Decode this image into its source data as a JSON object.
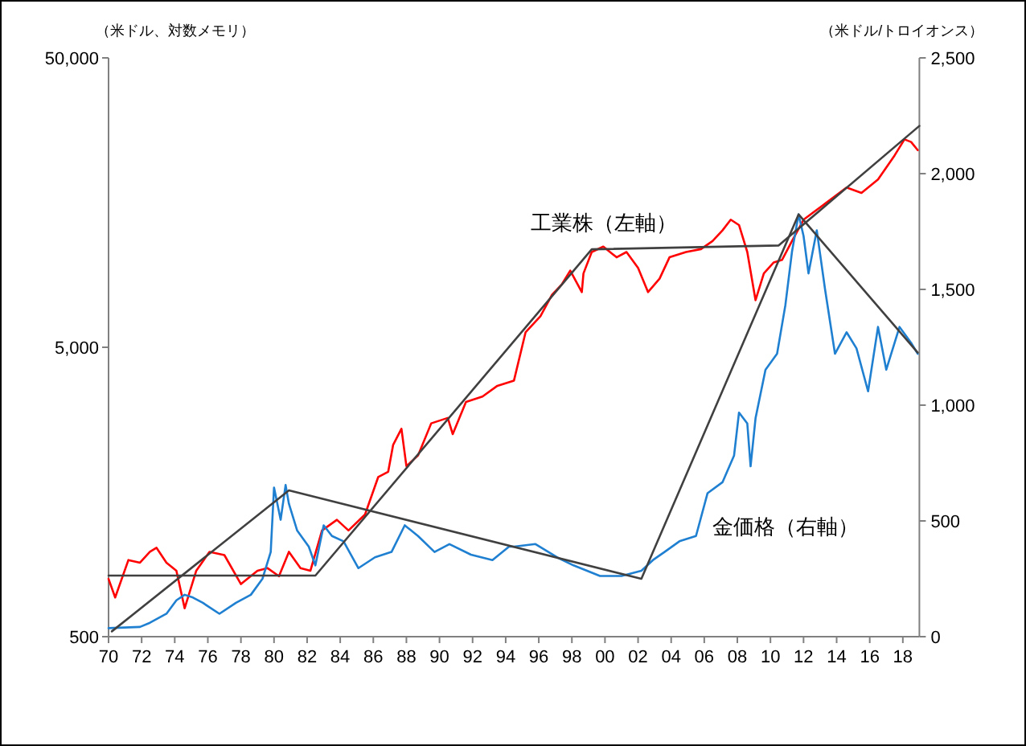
{
  "chart_data": {
    "type": "line",
    "ylabel": "（米ドル、対数メモリ）",
    "y2label": "（米ドル/トロイオンス）",
    "xlim": [
      1970,
      2019
    ],
    "xticks": [
      {
        "value": 1970,
        "label": "70"
      },
      {
        "value": 1972,
        "label": "72"
      },
      {
        "value": 1974,
        "label": "74"
      },
      {
        "value": 1976,
        "label": "76"
      },
      {
        "value": 1978,
        "label": "78"
      },
      {
        "value": 1980,
        "label": "80"
      },
      {
        "value": 1982,
        "label": "82"
      },
      {
        "value": 1984,
        "label": "84"
      },
      {
        "value": 1986,
        "label": "86"
      },
      {
        "value": 1988,
        "label": "88"
      },
      {
        "value": 1990,
        "label": "90"
      },
      {
        "value": 1992,
        "label": "92"
      },
      {
        "value": 1994,
        "label": "94"
      },
      {
        "value": 1996,
        "label": "96"
      },
      {
        "value": 1998,
        "label": "98"
      },
      {
        "value": 2000,
        "label": "00"
      },
      {
        "value": 2002,
        "label": "02"
      },
      {
        "value": 2004,
        "label": "04"
      },
      {
        "value": 2006,
        "label": "06"
      },
      {
        "value": 2008,
        "label": "08"
      },
      {
        "value": 2010,
        "label": "10"
      },
      {
        "value": 2012,
        "label": "12"
      },
      {
        "value": 2014,
        "label": "14"
      },
      {
        "value": 2016,
        "label": "16"
      },
      {
        "value": 2018,
        "label": "18"
      }
    ],
    "ylim": [
      500,
      50000
    ],
    "yticks": [
      500,
      {
        "value": 5000,
        "label": "5,000"
      },
      {
        "value": 50000,
        "label": "50,000"
      }
    ],
    "log": "y",
    "y2lim": [
      0,
      2500
    ],
    "y2ticks": [
      0,
      500,
      {
        "value": 1000,
        "label": "1,000"
      },
      {
        "value": 1500,
        "label": "1,500"
      },
      {
        "value": 2000,
        "label": "2,000"
      },
      {
        "value": 2500,
        "label": "2,500"
      }
    ],
    "series": [
      {
        "name": "工業株（左軸）",
        "color": "#ff0000",
        "x": [
          1970.0,
          1970.4,
          1971.2,
          1971.9,
          1972.5,
          1972.9,
          1973.5,
          1974.1,
          1974.6,
          1975.3,
          1976.1,
          1977.0,
          1978.0,
          1979.0,
          1979.6,
          1980.3,
          1980.9,
          1981.6,
          1982.2,
          1982.9,
          1983.8,
          1984.5,
          1985.5,
          1986.3,
          1986.9,
          1987.2,
          1987.7,
          1988.0,
          1988.7,
          1989.5,
          1990.5,
          1990.8,
          1991.6,
          1992.6,
          1993.5,
          1994.5,
          1995.2,
          1996.1,
          1996.8,
          1997.4,
          1997.9,
          1998.6,
          1998.7,
          1999.2,
          1999.9,
          2000.7,
          2001.3,
          2002.0,
          2002.6,
          2003.3,
          2003.9,
          2004.9,
          2005.8,
          2006.5,
          2007.1,
          2007.6,
          2008.1,
          2008.6,
          2009.1,
          2009.6,
          2010.2,
          2010.7,
          2011.3,
          2012.0,
          2013.3,
          2014.6,
          2015.5,
          2016.5,
          2017.5,
          2018.1,
          2018.5,
          2018.9
        ],
        "values": [
          792,
          683,
          920,
          901,
          982,
          1014,
          901,
          845,
          627,
          845,
          982,
          957,
          760,
          845,
          863,
          809,
          982,
          863,
          845,
          1164,
          1267,
          1164,
          1322,
          1782,
          1858,
          2301,
          2614,
          1941,
          2113,
          2730,
          2850,
          2506,
          3236,
          3380,
          3680,
          3837,
          5630,
          6400,
          7600,
          8260,
          9200,
          7760,
          9000,
          10670,
          11140,
          10230,
          10670,
          9400,
          7760,
          8630,
          10230,
          10670,
          10920,
          11640,
          12670,
          13800,
          13220,
          10670,
          7270,
          9000,
          9820,
          10020,
          11640,
          13800,
          15670,
          17820,
          17070,
          19000,
          23000,
          26150,
          25600,
          24000
        ]
      },
      {
        "name": "金価格（右軸）",
        "axis": "y2",
        "color": "#1f7fd0",
        "x": [
          1970.0,
          1971.9,
          1972.5,
          1973.5,
          1974.1,
          1974.6,
          1975.1,
          1975.7,
          1976.7,
          1977.7,
          1978.6,
          1979.3,
          1979.8,
          1980.0,
          1980.4,
          1980.7,
          1980.9,
          1981.4,
          1982.1,
          1982.5,
          1983.0,
          1983.5,
          1984.2,
          1985.1,
          1986.1,
          1987.1,
          1987.9,
          1988.7,
          1989.7,
          1990.6,
          1991.9,
          1993.2,
          1994.2,
          1994.5,
          1995.8,
          1997.1,
          1998.1,
          1999.7,
          2001.0,
          2002.2,
          2002.9,
          2003.6,
          2004.5,
          2005.5,
          2006.2,
          2007.1,
          2007.8,
          2008.1,
          2008.6,
          2008.8,
          2009.1,
          2009.7,
          2010.4,
          2010.9,
          2011.3,
          2011.7,
          2012.0,
          2012.3,
          2012.8,
          2013.3,
          2013.9,
          2014.6,
          2015.2,
          2015.9,
          2016.5,
          2017.0,
          2017.8,
          2018.5,
          2018.9
        ],
        "values": [
          37,
          42,
          60,
          99,
          157,
          181,
          169,
          146,
          99,
          146,
          181,
          250,
          366,
          644,
          505,
          655,
          574,
          458,
          389,
          308,
          481,
          435,
          412,
          296,
          343,
          366,
          481,
          435,
          366,
          400,
          354,
          331,
          389,
          389,
          400,
          343,
          308,
          262,
          262,
          285,
          331,
          366,
          412,
          435,
          620,
          667,
          782,
          968,
          921,
          736,
          944,
          1153,
          1222,
          1431,
          1662,
          1824,
          1731,
          1569,
          1755,
          1500,
          1222,
          1315,
          1245,
          1060,
          1338,
          1153,
          1338,
          1269,
          1222
        ]
      },
      {
        "color": "#404040",
        "x": [
          1970,
          1982.5,
          1999.2,
          2010.5,
          2019
        ],
        "values": [
          813,
          813,
          10900,
          11240,
          29100
        ]
      },
      {
        "axis": "y2",
        "color": "#404040",
        "x": [
          1970.2,
          1980.9,
          2002.2,
          2011.7,
          2018.9
        ],
        "values": [
          23,
          632,
          250,
          1824,
          1227
        ]
      }
    ]
  }
}
